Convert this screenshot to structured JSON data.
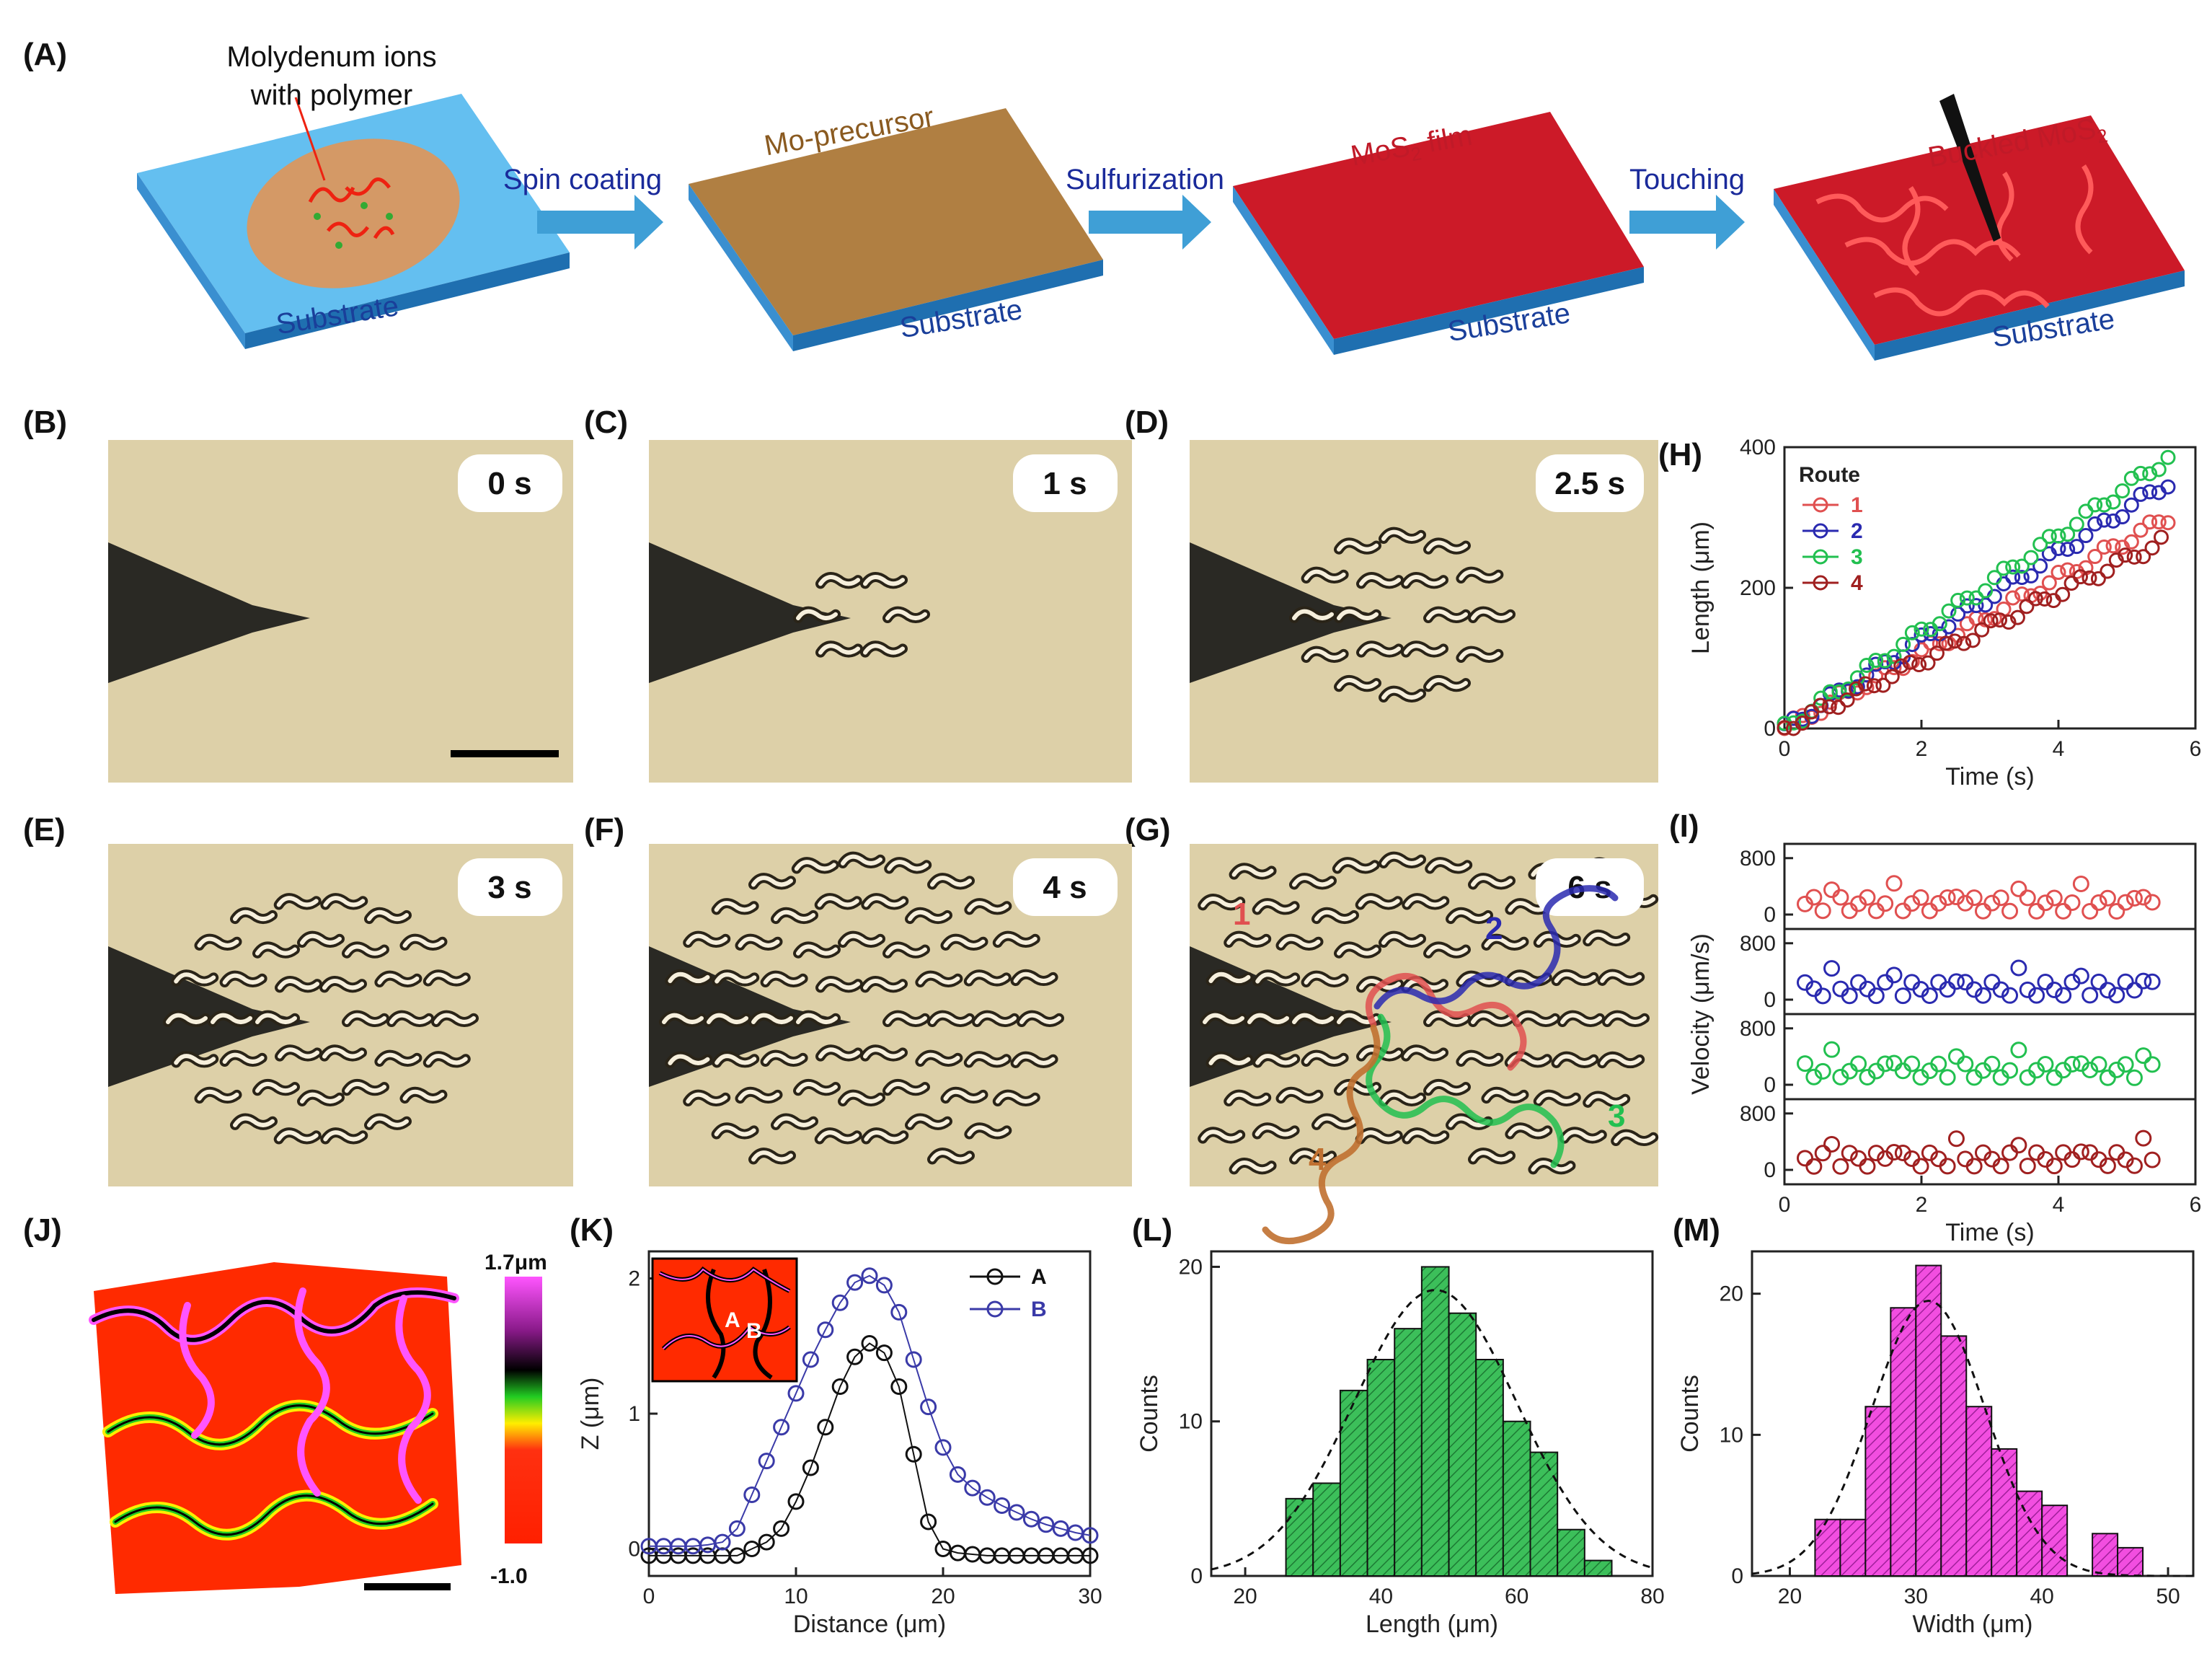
{
  "panels": {
    "A": "(A)",
    "B": "(B)",
    "C": "(C)",
    "D": "(D)",
    "E": "(E)",
    "F": "(F)",
    "G": "(G)",
    "H": "(H)",
    "I": "(I)",
    "J": "(J)",
    "K": "(K)",
    "L": "(L)",
    "M": "(M)"
  },
  "schematic": {
    "ions_line1": "Molydenum ions",
    "ions_line2": "with polymer",
    "substrate": "Substrate",
    "step1": "Spin coating",
    "step2": "Sulfurization",
    "step3": "Touching",
    "precursor": "Mo-precursor",
    "film_prefix": "MoS",
    "film_sub": "2",
    "film_suffix": " film",
    "buckled_prefix": "Buckled MoS",
    "buckled_sub": "2"
  },
  "micrographs": {
    "B": "0 s",
    "C": "1 s",
    "D": "2.5 s",
    "E": "3 s",
    "F": "4 s",
    "G": "6 s",
    "routes": [
      "1",
      "2",
      "3",
      "4"
    ]
  },
  "colors": {
    "blue_substrate": "#3aa3dc",
    "precursor": "#b07f42",
    "mos2": "#cc1a28",
    "arrow": "#3f9fd6",
    "micro_bg": "#ddd0a8",
    "route1": "#e05050",
    "route2": "#2a2ab0",
    "route3": "#22c050",
    "route4": "#a02020",
    "hist_green": "#3cbf5a",
    "hist_pink": "#f24ee0"
  },
  "chart_data": [
    {
      "id": "H",
      "type": "scatter",
      "xlabel": "Time (s)",
      "ylabel": "Length (μm)",
      "xlim": [
        0,
        6
      ],
      "ylim": [
        0,
        400
      ],
      "xticks": [
        "0",
        "2",
        "4",
        "6"
      ],
      "yticks": [
        "0",
        "200",
        "400"
      ],
      "legend_title": "Route",
      "series": [
        {
          "name": "1",
          "x": [
            0,
            5.6
          ],
          "y": [
            0,
            300
          ]
        },
        {
          "name": "2",
          "x": [
            0,
            5.6
          ],
          "y": [
            0,
            350
          ]
        },
        {
          "name": "3",
          "x": [
            0,
            5.6
          ],
          "y": [
            0,
            385
          ]
        },
        {
          "name": "4",
          "x": [
            0,
            5.5
          ],
          "y": [
            0,
            265
          ]
        }
      ]
    },
    {
      "id": "I",
      "type": "scatter",
      "xlabel": "Time (s)",
      "ylabel": "Velocity (μm/s)",
      "xlim": [
        0,
        6
      ],
      "ylim": [
        0,
        800
      ],
      "xticks": [
        "0",
        "2",
        "4",
        "6"
      ],
      "yticks": [
        "0",
        "800"
      ],
      "series": [
        {
          "name": "1",
          "mean": 150
        },
        {
          "name": "2",
          "mean": 150
        },
        {
          "name": "3",
          "mean": 200
        },
        {
          "name": "4",
          "mean": 150
        }
      ]
    },
    {
      "id": "J",
      "type": "heatmap",
      "colorbar_max": "1.7",
      "colorbar_unit": "μm",
      "colorbar_min": "-1.0"
    },
    {
      "id": "K",
      "type": "line",
      "xlabel": "Distance (μm)",
      "ylabel": "Z (μm)",
      "xlim": [
        0,
        30
      ],
      "ylim": [
        -0.2,
        2.2
      ],
      "xticks": [
        "0",
        "10",
        "20",
        "30"
      ],
      "yticks": [
        "0",
        "1",
        "2"
      ],
      "series": [
        {
          "name": "A",
          "x": [
            0,
            1,
            2,
            3,
            4,
            5,
            6,
            7,
            8,
            9,
            10,
            11,
            12,
            13,
            14,
            15,
            16,
            17,
            18,
            19,
            20,
            21,
            22,
            23,
            24,
            25,
            26,
            27,
            28,
            29,
            30
          ],
          "y": [
            -0.05,
            -0.05,
            -0.05,
            -0.05,
            -0.05,
            -0.05,
            -0.05,
            0,
            0.05,
            0.15,
            0.35,
            0.6,
            0.9,
            1.2,
            1.42,
            1.52,
            1.45,
            1.2,
            0.7,
            0.2,
            0,
            -0.03,
            -0.04,
            -0.05,
            -0.05,
            -0.05,
            -0.05,
            -0.05,
            -0.05,
            -0.05,
            -0.05
          ]
        },
        {
          "name": "B",
          "x": [
            0,
            1,
            2,
            3,
            4,
            5,
            6,
            7,
            8,
            9,
            10,
            11,
            12,
            13,
            14,
            15,
            16,
            17,
            18,
            19,
            20,
            21,
            22,
            23,
            24,
            25,
            26,
            27,
            28,
            29,
            30
          ],
          "y": [
            0.02,
            0.02,
            0.02,
            0.02,
            0.03,
            0.05,
            0.15,
            0.4,
            0.65,
            0.9,
            1.15,
            1.4,
            1.62,
            1.82,
            1.97,
            2.02,
            1.95,
            1.75,
            1.4,
            1.05,
            0.75,
            0.55,
            0.45,
            0.38,
            0.32,
            0.27,
            0.22,
            0.18,
            0.15,
            0.12,
            0.1
          ]
        }
      ],
      "inset_labels": [
        "A",
        "B"
      ]
    },
    {
      "id": "L",
      "type": "bar",
      "xlabel": "Length (μm)",
      "ylabel": "Counts",
      "xlim": [
        15,
        80
      ],
      "ylim": [
        0,
        21
      ],
      "xticks": [
        "20",
        "40",
        "60",
        "80"
      ],
      "yticks": [
        "0",
        "10",
        "20"
      ],
      "bin_width": 4,
      "bin_starts": [
        26,
        30,
        34,
        38,
        42,
        46,
        50,
        54,
        58,
        62,
        66,
        70
      ],
      "values": [
        5,
        6,
        12,
        14,
        16,
        20,
        17,
        14,
        10,
        8,
        3,
        1
      ],
      "fit": {
        "mean": 48,
        "sigma": 12,
        "peak": 18.5
      }
    },
    {
      "id": "M",
      "type": "bar",
      "xlabel": "Width (μm)",
      "ylabel": "Counts",
      "xlim": [
        17,
        52
      ],
      "ylim": [
        0,
        23
      ],
      "xticks": [
        "20",
        "30",
        "40",
        "50"
      ],
      "yticks": [
        "0",
        "10",
        "20"
      ],
      "bin_width": 2,
      "bin_starts": [
        22,
        24,
        26,
        28,
        30,
        32,
        34,
        36,
        38,
        40,
        44,
        46
      ],
      "values": [
        4,
        4,
        12,
        19,
        22,
        17,
        12,
        9,
        6,
        5,
        3,
        2
      ],
      "fit": {
        "mean": 31,
        "sigma": 4.5,
        "peak": 19.5
      }
    }
  ]
}
